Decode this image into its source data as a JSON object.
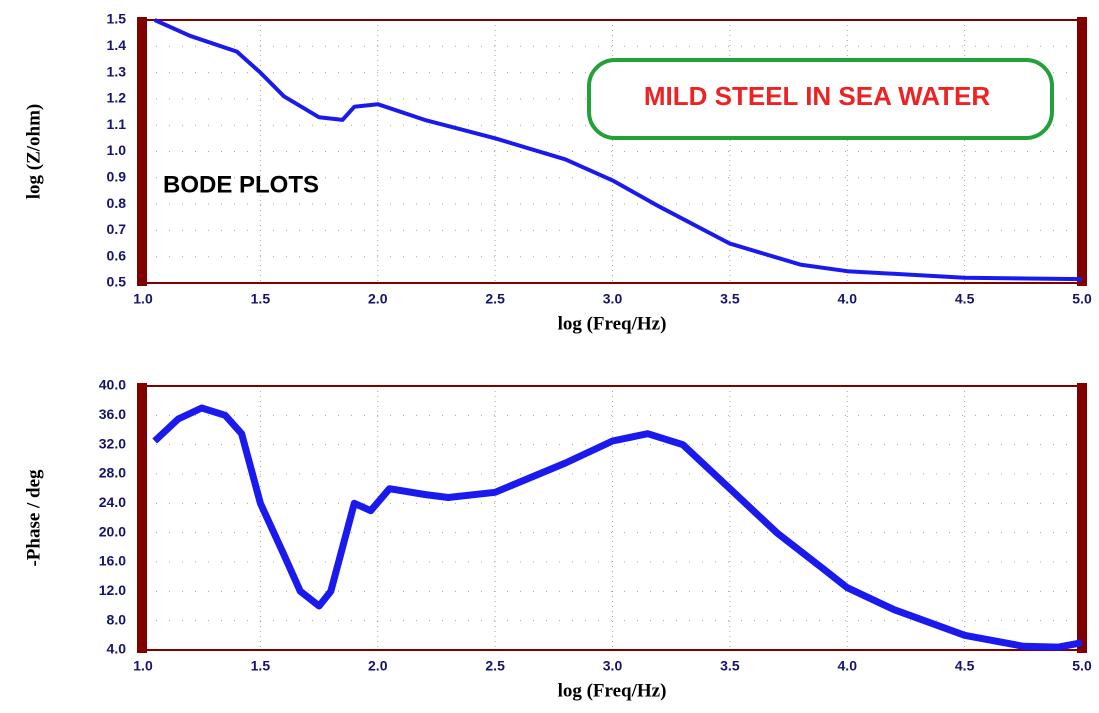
{
  "chart_data": [
    {
      "type": "line",
      "ylabel": "log (Z/ohm)",
      "xlabel": "log (Freq/Hz)",
      "annotations": [
        "BODE PLOTS",
        "MILD STEEL IN SEA WATER"
      ],
      "x": [
        1.05,
        1.2,
        1.4,
        1.5,
        1.6,
        1.75,
        1.85,
        1.9,
        2.0,
        2.2,
        2.5,
        2.8,
        3.0,
        3.2,
        3.5,
        3.8,
        4.0,
        4.5,
        5.0
      ],
      "values": [
        1.5,
        1.44,
        1.38,
        1.3,
        1.21,
        1.13,
        1.12,
        1.17,
        1.18,
        1.12,
        1.05,
        0.97,
        0.89,
        0.79,
        0.65,
        0.57,
        0.545,
        0.52,
        0.515
      ],
      "color": "#1a1aee",
      "grid": true,
      "xlim": [
        1,
        5
      ],
      "ylim": [
        0.5,
        1.5
      ],
      "xticks": [
        {
          "value": 1,
          "label": "1.0"
        },
        1.5,
        {
          "value": 2,
          "label": "2.0"
        },
        2.5,
        {
          "value": 3,
          "label": "3.0"
        },
        3.5,
        {
          "value": 4,
          "label": "4.0"
        },
        4.5,
        {
          "value": 5,
          "label": "5.0"
        }
      ],
      "yticks": [
        0.5,
        0.6,
        0.7,
        0.8,
        0.9,
        {
          "value": 1,
          "label": "1.0"
        },
        1.1,
        1.2,
        1.3,
        1.4,
        1.5
      ]
    },
    {
      "type": "line",
      "ylabel": "-Phase / deg",
      "xlabel": "log (Freq/Hz)",
      "x": [
        1.05,
        1.15,
        1.25,
        1.35,
        1.42,
        1.5,
        1.6,
        1.67,
        1.75,
        1.8,
        1.9,
        1.97,
        2.05,
        2.2,
        2.3,
        2.5,
        2.8,
        3.0,
        3.15,
        3.3,
        3.5,
        3.7,
        3.9,
        4.0,
        4.2,
        4.5,
        4.75,
        4.9,
        5.0
      ],
      "values": [
        32.5,
        35.5,
        37,
        36,
        33.5,
        24,
        17,
        12,
        10,
        12,
        24,
        23,
        26,
        25.2,
        24.8,
        25.5,
        29.5,
        32.5,
        33.5,
        32,
        26,
        20,
        15,
        12.5,
        9.5,
        6,
        4.5,
        4.4,
        5
      ],
      "color": "#1a1aee",
      "grid": true,
      "xlim": [
        1,
        5
      ],
      "ylim": [
        4,
        40
      ],
      "xticks": [
        {
          "value": 1,
          "label": "1.0"
        },
        1.5,
        {
          "value": 2,
          "label": "2.0"
        },
        2.5,
        {
          "value": 3,
          "label": "3.0"
        },
        3.5,
        {
          "value": 4,
          "label": "4.0"
        },
        4.5,
        {
          "value": 5,
          "label": "5.0"
        }
      ],
      "yticks": [
        {
          "value": 4,
          "label": "4.0"
        },
        {
          "value": 8,
          "label": "8.0"
        },
        {
          "value": 12,
          "label": "12.0"
        },
        {
          "value": 16,
          "label": "16.0"
        },
        {
          "value": 20,
          "label": "20.0"
        },
        {
          "value": 24,
          "label": "24.0"
        },
        {
          "value": 28,
          "label": "28.0"
        },
        {
          "value": 32,
          "label": "32.0"
        },
        {
          "value": 36,
          "label": "36.0"
        },
        {
          "value": 40,
          "label": "40.0"
        }
      ]
    }
  ]
}
